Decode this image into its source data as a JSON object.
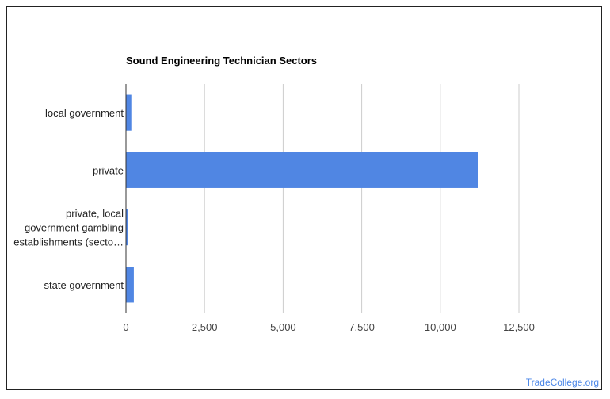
{
  "credit": "TradeCollege.org",
  "chart_data": {
    "type": "bar",
    "orientation": "horizontal",
    "title": "Sound Engineering Technician Sectors",
    "categories": [
      [
        "local government"
      ],
      [
        "private"
      ],
      [
        "private, local",
        "government gambling",
        "establishments (secto…"
      ],
      [
        "state government"
      ]
    ],
    "values": [
      170,
      11200,
      40,
      250
    ],
    "xlim": [
      0,
      12500
    ],
    "ticks": [
      0,
      2500,
      5000,
      7500,
      10000,
      12500
    ],
    "tick_labels": [
      "0",
      "2,500",
      "5,000",
      "7,500",
      "10,000",
      "12,500"
    ],
    "bar_color": "#5086e3",
    "grid_color": "#cccccc",
    "axis_color": "#333333",
    "xlabel": "",
    "ylabel": ""
  }
}
